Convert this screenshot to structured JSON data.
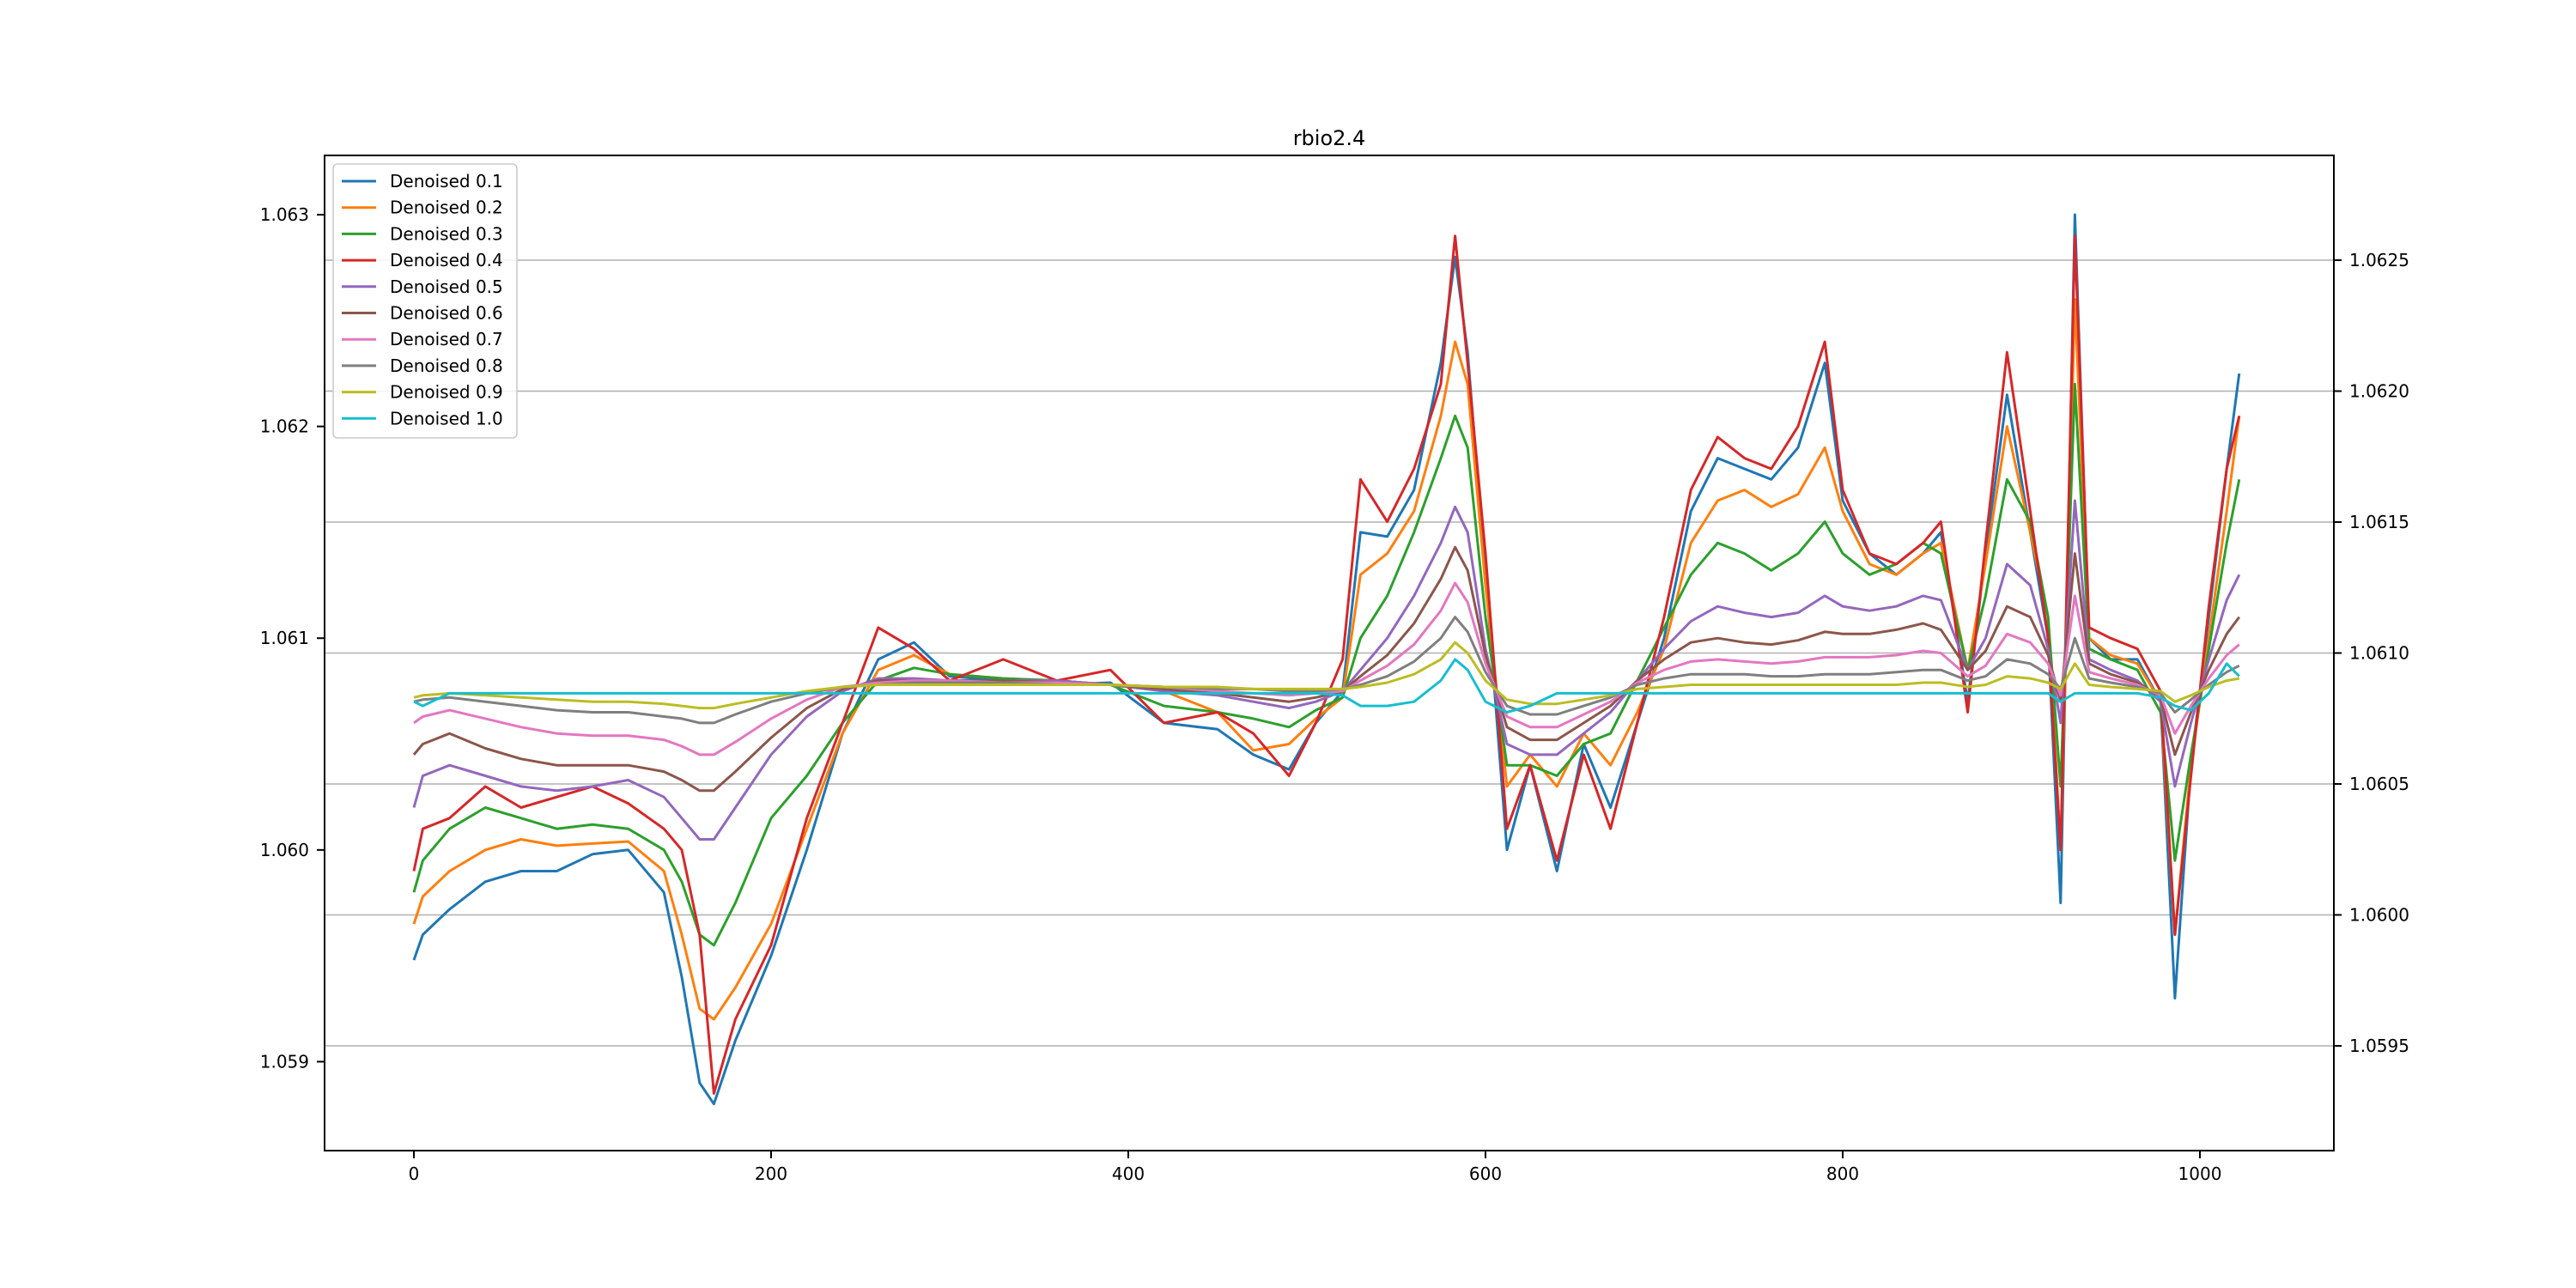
{
  "chart_data": {
    "type": "line",
    "title": "rbio2.4",
    "xlabel": "",
    "ylabel": "",
    "xlim": [
      -50,
      1075
    ],
    "ylim_left": [
      1.05858,
      1.06328
    ],
    "ylim_right": [
      1.0591,
      1.0629
    ],
    "x_ticks": [
      0,
      200,
      400,
      600,
      800,
      1000
    ],
    "y_ticks_left": [
      1.059,
      1.06,
      1.061,
      1.062,
      1.063
    ],
    "y_ticks_left_labels": [
      "1.059",
      "1.060",
      "1.061",
      "1.062",
      "1.063"
    ],
    "y_ticks_right": [
      1.0595,
      1.06,
      1.0605,
      1.061,
      1.0615,
      1.062,
      1.0625
    ],
    "y_ticks_right_labels": [
      "1.0595",
      "1.0600",
      "1.0605",
      "1.0610",
      "1.0615",
      "1.0620",
      "1.0625"
    ],
    "grid": "horizontal on right axis",
    "legend_position": "upper-left",
    "x": [
      0,
      5,
      20,
      40,
      60,
      80,
      100,
      120,
      140,
      150,
      160,
      168,
      180,
      200,
      220,
      240,
      260,
      280,
      300,
      330,
      360,
      390,
      420,
      450,
      470,
      490,
      505,
      520,
      530,
      545,
      560,
      575,
      583,
      590,
      600,
      612,
      625,
      640,
      655,
      670,
      685,
      700,
      715,
      730,
      745,
      760,
      775,
      790,
      800,
      815,
      830,
      845,
      855,
      870,
      880,
      892,
      905,
      915,
      922,
      930,
      938,
      950,
      965,
      978,
      986,
      995,
      1005,
      1015,
      1022
    ],
    "series": [
      {
        "name": "Denoised 0.1",
        "color": "#1f77b4",
        "values": [
          1.05948,
          1.0596,
          1.05972,
          1.05985,
          1.0599,
          1.0599,
          1.05998,
          1.06,
          1.0598,
          1.0594,
          1.0589,
          1.0588,
          1.0591,
          1.0595,
          1.06,
          1.06055,
          1.0609,
          1.06098,
          1.06082,
          1.0608,
          1.06078,
          1.06079,
          1.0606,
          1.06057,
          1.06045,
          1.06038,
          1.0606,
          1.06075,
          1.0615,
          1.06148,
          1.0617,
          1.0623,
          1.0628,
          1.06235,
          1.0613,
          1.06,
          1.0604,
          1.0599,
          1.0605,
          1.0602,
          1.0606,
          1.061,
          1.0616,
          1.06185,
          1.0618,
          1.06175,
          1.0619,
          1.0623,
          1.06165,
          1.0614,
          1.0613,
          1.0614,
          1.0615,
          1.0607,
          1.0614,
          1.06215,
          1.0615,
          1.061,
          1.05975,
          1.063,
          1.061,
          1.0609,
          1.0609,
          1.0607,
          1.0593,
          1.0604,
          1.0611,
          1.0618,
          1.06225
        ]
      },
      {
        "name": "Denoised 0.2",
        "color": "#ff7f0e",
        "values": [
          1.05965,
          1.05978,
          1.0599,
          1.06,
          1.06005,
          1.06002,
          1.06003,
          1.06004,
          1.0599,
          1.0596,
          1.05925,
          1.0592,
          1.05935,
          1.05965,
          1.0601,
          1.06055,
          1.06085,
          1.06092,
          1.06083,
          1.06081,
          1.0608,
          1.06078,
          1.06075,
          1.06065,
          1.06047,
          1.0605,
          1.06062,
          1.06072,
          1.0613,
          1.0614,
          1.0616,
          1.06205,
          1.0624,
          1.0622,
          1.06125,
          1.0603,
          1.06045,
          1.0603,
          1.06055,
          1.0604,
          1.06065,
          1.06095,
          1.06145,
          1.06165,
          1.0617,
          1.06162,
          1.06168,
          1.0619,
          1.0616,
          1.06135,
          1.0613,
          1.0614,
          1.06145,
          1.06085,
          1.06135,
          1.062,
          1.0615,
          1.0611,
          1.06,
          1.0626,
          1.061,
          1.06092,
          1.06088,
          1.0607,
          1.0596,
          1.0604,
          1.061,
          1.0616,
          1.06205
        ]
      },
      {
        "name": "Denoised 0.3",
        "color": "#2ca02c",
        "values": [
          1.0598,
          1.05995,
          1.0601,
          1.0602,
          1.06015,
          1.0601,
          1.06012,
          1.0601,
          1.06,
          1.05985,
          1.0596,
          1.05955,
          1.05975,
          1.06015,
          1.06035,
          1.0606,
          1.0608,
          1.06086,
          1.06083,
          1.06081,
          1.0608,
          1.06078,
          1.06068,
          1.06065,
          1.06062,
          1.06058,
          1.06066,
          1.06072,
          1.061,
          1.0612,
          1.0615,
          1.06185,
          1.06205,
          1.0619,
          1.0611,
          1.0604,
          1.0604,
          1.06035,
          1.0605,
          1.06055,
          1.0608,
          1.06105,
          1.0613,
          1.06145,
          1.0614,
          1.06132,
          1.0614,
          1.06155,
          1.0614,
          1.0613,
          1.06135,
          1.06145,
          1.0614,
          1.06085,
          1.0612,
          1.06175,
          1.06155,
          1.0611,
          1.0603,
          1.0622,
          1.06095,
          1.0609,
          1.06085,
          1.06065,
          1.05995,
          1.06045,
          1.06095,
          1.06145,
          1.06175
        ]
      },
      {
        "name": "Denoised 0.4",
        "color": "#d62728",
        "values": [
          1.0599,
          1.0601,
          1.06015,
          1.0603,
          1.0602,
          1.06025,
          1.0603,
          1.06022,
          1.0601,
          1.06,
          1.0596,
          1.05885,
          1.0592,
          1.05955,
          1.06015,
          1.0606,
          1.06105,
          1.06095,
          1.0608,
          1.0609,
          1.0608,
          1.06085,
          1.0606,
          1.06065,
          1.06055,
          1.06035,
          1.0606,
          1.0609,
          1.06175,
          1.06155,
          1.0618,
          1.0622,
          1.0629,
          1.0623,
          1.0614,
          1.0601,
          1.0604,
          1.05995,
          1.06045,
          1.0601,
          1.0606,
          1.0611,
          1.0617,
          1.06195,
          1.06185,
          1.0618,
          1.062,
          1.0624,
          1.0617,
          1.0614,
          1.06135,
          1.06145,
          1.06155,
          1.06065,
          1.06145,
          1.06235,
          1.0616,
          1.061,
          1.06,
          1.0629,
          1.06105,
          1.061,
          1.06095,
          1.06075,
          1.0596,
          1.06035,
          1.06115,
          1.0618,
          1.06205
        ]
      },
      {
        "name": "Denoised 0.5",
        "color": "#9467bd",
        "values": [
          1.0602,
          1.06035,
          1.0604,
          1.06035,
          1.0603,
          1.06028,
          1.0603,
          1.06033,
          1.06025,
          1.06015,
          1.06005,
          1.06005,
          1.0602,
          1.06045,
          1.06063,
          1.06075,
          1.06081,
          1.06081,
          1.0608,
          1.0608,
          1.0608,
          1.06078,
          1.06075,
          1.06073,
          1.0607,
          1.06067,
          1.0607,
          1.06075,
          1.06085,
          1.061,
          1.0612,
          1.06145,
          1.06162,
          1.0615,
          1.06095,
          1.0605,
          1.06045,
          1.06045,
          1.06055,
          1.06065,
          1.0608,
          1.06095,
          1.06108,
          1.06115,
          1.06112,
          1.0611,
          1.06112,
          1.0612,
          1.06115,
          1.06113,
          1.06115,
          1.0612,
          1.06118,
          1.06085,
          1.061,
          1.06135,
          1.06125,
          1.06095,
          1.0606,
          1.06165,
          1.0609,
          1.06085,
          1.0608,
          1.0607,
          1.0603,
          1.0606,
          1.0609,
          1.06118,
          1.0613
        ]
      },
      {
        "name": "Denoised 0.6",
        "color": "#8c564b",
        "values": [
          1.06045,
          1.0605,
          1.06055,
          1.06048,
          1.06043,
          1.0604,
          1.0604,
          1.0604,
          1.06037,
          1.06033,
          1.06028,
          1.06028,
          1.06037,
          1.06053,
          1.06067,
          1.06076,
          1.0608,
          1.0608,
          1.0608,
          1.0608,
          1.06079,
          1.06078,
          1.06076,
          1.06074,
          1.06072,
          1.0607,
          1.06072,
          1.06075,
          1.06082,
          1.06092,
          1.06107,
          1.06128,
          1.06143,
          1.06132,
          1.06092,
          1.06058,
          1.06052,
          1.06052,
          1.0606,
          1.06068,
          1.0608,
          1.0609,
          1.06098,
          1.061,
          1.06098,
          1.06097,
          1.06099,
          1.06103,
          1.06102,
          1.06102,
          1.06104,
          1.06107,
          1.06104,
          1.06085,
          1.06094,
          1.06115,
          1.0611,
          1.06092,
          1.0607,
          1.0614,
          1.06088,
          1.06083,
          1.06079,
          1.06072,
          1.06045,
          1.06065,
          1.06085,
          1.06102,
          1.0611
        ]
      },
      {
        "name": "Denoised 0.7",
        "color": "#e377c2",
        "values": [
          1.0606,
          1.06063,
          1.06066,
          1.06062,
          1.06058,
          1.06055,
          1.06054,
          1.06054,
          1.06052,
          1.06049,
          1.06045,
          1.06045,
          1.06051,
          1.06062,
          1.06071,
          1.06077,
          1.06079,
          1.0608,
          1.0608,
          1.06079,
          1.06079,
          1.06078,
          1.06077,
          1.06075,
          1.06074,
          1.06073,
          1.06074,
          1.06075,
          1.0608,
          1.06087,
          1.06097,
          1.06113,
          1.06126,
          1.06117,
          1.06088,
          1.06063,
          1.06058,
          1.06058,
          1.06064,
          1.0607,
          1.06079,
          1.06085,
          1.06089,
          1.0609,
          1.06089,
          1.06088,
          1.06089,
          1.06091,
          1.06091,
          1.06091,
          1.06092,
          1.06094,
          1.06093,
          1.06082,
          1.06087,
          1.06102,
          1.06098,
          1.06088,
          1.06073,
          1.0612,
          1.06084,
          1.06081,
          1.06078,
          1.06073,
          1.06055,
          1.06068,
          1.06081,
          1.06092,
          1.06097
        ]
      },
      {
        "name": "Denoised 0.8",
        "color": "#7f7f7f",
        "values": [
          1.0607,
          1.06071,
          1.06072,
          1.0607,
          1.06068,
          1.06066,
          1.06065,
          1.06065,
          1.06063,
          1.06062,
          1.0606,
          1.0606,
          1.06064,
          1.0607,
          1.06074,
          1.06077,
          1.06078,
          1.06079,
          1.06079,
          1.06079,
          1.06078,
          1.06078,
          1.06077,
          1.06076,
          1.06076,
          1.06075,
          1.06075,
          1.06076,
          1.06078,
          1.06082,
          1.06089,
          1.061,
          1.0611,
          1.06103,
          1.06084,
          1.06068,
          1.06064,
          1.06064,
          1.06068,
          1.06072,
          1.06078,
          1.06081,
          1.06083,
          1.06083,
          1.06083,
          1.06082,
          1.06082,
          1.06083,
          1.06083,
          1.06083,
          1.06084,
          1.06085,
          1.06085,
          1.0608,
          1.06082,
          1.0609,
          1.06088,
          1.06083,
          1.06076,
          1.061,
          1.06081,
          1.06079,
          1.06077,
          1.06074,
          1.06065,
          1.06071,
          1.06078,
          1.06084,
          1.06087
        ]
      },
      {
        "name": "Denoised 0.9",
        "color": "#bcbd22",
        "values": [
          1.06072,
          1.06073,
          1.06074,
          1.06073,
          1.06072,
          1.06071,
          1.0607,
          1.0607,
          1.06069,
          1.06068,
          1.06067,
          1.06067,
          1.06069,
          1.06072,
          1.06075,
          1.06077,
          1.06078,
          1.06078,
          1.06078,
          1.06078,
          1.06078,
          1.06078,
          1.06077,
          1.06077,
          1.06076,
          1.06076,
          1.06076,
          1.06076,
          1.06077,
          1.06079,
          1.06083,
          1.0609,
          1.06098,
          1.06093,
          1.0608,
          1.06071,
          1.06069,
          1.06069,
          1.06071,
          1.06073,
          1.06076,
          1.06077,
          1.06078,
          1.06078,
          1.06078,
          1.06078,
          1.06078,
          1.06078,
          1.06078,
          1.06078,
          1.06078,
          1.06079,
          1.06079,
          1.06077,
          1.06078,
          1.06082,
          1.06081,
          1.06079,
          1.06076,
          1.06088,
          1.06078,
          1.06077,
          1.06076,
          1.06075,
          1.0607,
          1.06073,
          1.06077,
          1.0608,
          1.06081
        ]
      },
      {
        "name": "Denoised 1.0",
        "color": "#17becf",
        "values": [
          1.0607,
          1.06068,
          1.06074,
          1.06074,
          1.06074,
          1.06074,
          1.06074,
          1.06074,
          1.06074,
          1.06074,
          1.06074,
          1.06074,
          1.06074,
          1.06074,
          1.06074,
          1.06074,
          1.06074,
          1.06074,
          1.06074,
          1.06074,
          1.06074,
          1.06074,
          1.06074,
          1.06074,
          1.06074,
          1.06074,
          1.06074,
          1.06073,
          1.06068,
          1.06068,
          1.0607,
          1.0608,
          1.0609,
          1.06085,
          1.0607,
          1.06065,
          1.06068,
          1.06074,
          1.06074,
          1.06074,
          1.06074,
          1.06074,
          1.06074,
          1.06074,
          1.06074,
          1.06074,
          1.06074,
          1.06074,
          1.06074,
          1.06074,
          1.06074,
          1.06074,
          1.06074,
          1.06074,
          1.06074,
          1.06074,
          1.06074,
          1.06074,
          1.0607,
          1.06074,
          1.06074,
          1.06074,
          1.06074,
          1.06072,
          1.06068,
          1.06066,
          1.06074,
          1.06088,
          1.06082
        ]
      }
    ]
  }
}
